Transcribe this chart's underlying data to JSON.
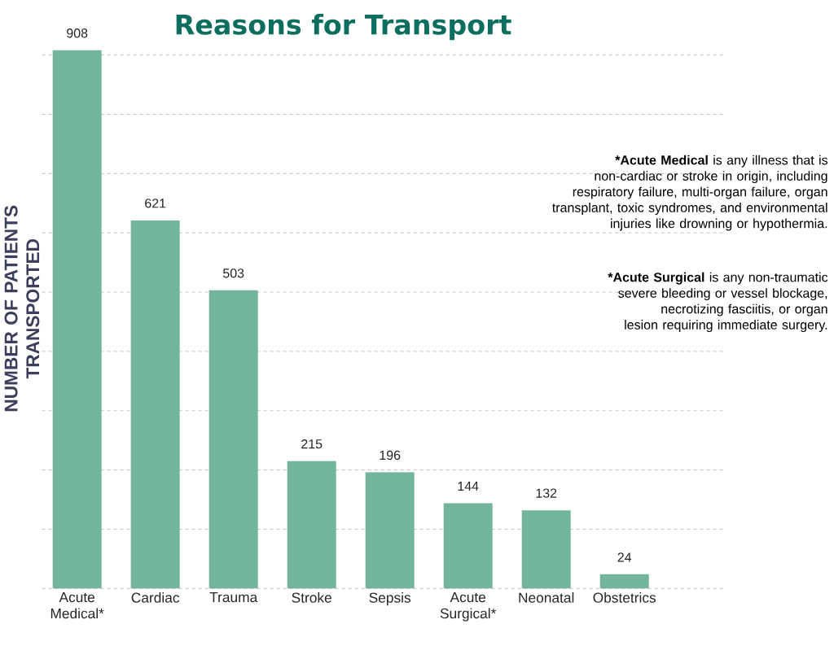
{
  "chart_data": {
    "type": "bar",
    "title": "Reasons for Transport",
    "ylabel": "NUMBER OF PATIENTS TRANSPORTED",
    "categories": [
      "Acute Medical*",
      "Cardiac",
      "Trauma",
      "Stroke",
      "Sepsis",
      "Acute Surgical*",
      "Neonatal",
      "Obstetrics"
    ],
    "values": [
      908,
      621,
      503,
      215,
      196,
      144,
      132,
      24
    ],
    "color": "#72b59a",
    "yticks": [
      {
        "value": 0,
        "label": null
      },
      {
        "value": 100,
        "label": null
      },
      {
        "value": 200,
        "label": null
      },
      {
        "value": 300,
        "label": null
      },
      {
        "value": 400,
        "label": null
      },
      {
        "value": 500,
        "label": null
      },
      {
        "value": 600,
        "label": null
      },
      {
        "value": 700,
        "label": null
      },
      {
        "value": 800,
        "label": null
      },
      {
        "value": 900,
        "label": null
      }
    ],
    "tick_labels": "x",
    "grid": "y",
    "data_labels": true,
    "annotations": [
      "***Acute Medical** is any illness that is non-cardiac or stroke in origin, including respiratory failure, multi-organ failure, organ transplant, toxic syndromes, and environmental injuries like drowning or hypothermia.",
      "***Acute Surgical** is any non-traumatic severe bleeding or vessel blockage, necrotizing fasciitis, or organ lesion requiring immediate surgery."
    ]
  }
}
